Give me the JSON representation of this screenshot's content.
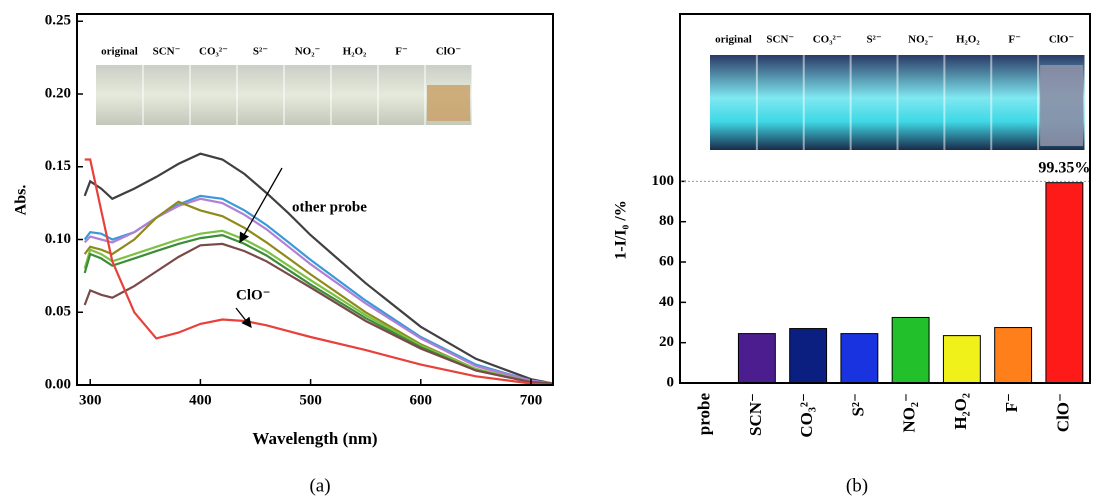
{
  "chart_data": [
    {
      "type": "line",
      "caption": "(a)",
      "x_label": "Wavelength (nm)",
      "y_label": "Abs.",
      "inset_labels": [
        "original",
        "SCN⁻",
        "CO₃²⁻",
        "S²⁻",
        "NO₂⁻",
        "H₂O₂",
        "F⁻",
        "ClO⁻"
      ],
      "annotations": [
        "other probe",
        "ClO⁻"
      ],
      "x": [
        295,
        300,
        310,
        320,
        340,
        360,
        380,
        400,
        420,
        440,
        460,
        480,
        500,
        550,
        600,
        650,
        700,
        720
      ],
      "series": [
        {
          "color": "#404040",
          "values": [
            0.13,
            0.14,
            0.135,
            0.128,
            0.135,
            0.143,
            0.152,
            0.159,
            0.155,
            0.145,
            0.132,
            0.118,
            0.103,
            0.07,
            0.04,
            0.018,
            0.004,
            0.001
          ]
        },
        {
          "color": "#3a9ad9",
          "values": [
            0.1,
            0.105,
            0.104,
            0.1,
            0.105,
            0.115,
            0.124,
            0.13,
            0.128,
            0.12,
            0.11,
            0.098,
            0.086,
            0.058,
            0.033,
            0.014,
            0.003,
            0.001
          ]
        },
        {
          "color": "#b27fd6",
          "values": [
            0.098,
            0.102,
            0.1,
            0.098,
            0.105,
            0.115,
            0.123,
            0.128,
            0.125,
            0.117,
            0.107,
            0.095,
            0.083,
            0.056,
            0.032,
            0.013,
            0.003,
            0.001
          ]
        },
        {
          "color": "#8f8a1c",
          "values": [
            0.09,
            0.095,
            0.093,
            0.09,
            0.1,
            0.115,
            0.126,
            0.12,
            0.116,
            0.108,
            0.098,
            0.087,
            0.076,
            0.05,
            0.028,
            0.011,
            0.002,
            0.001
          ]
        },
        {
          "color": "#7cc242",
          "values": [
            0.08,
            0.093,
            0.09,
            0.085,
            0.09,
            0.095,
            0.1,
            0.104,
            0.106,
            0.1,
            0.092,
            0.082,
            0.072,
            0.048,
            0.027,
            0.011,
            0.002,
            0.001
          ]
        },
        {
          "color": "#3d8c3a",
          "values": [
            0.077,
            0.09,
            0.087,
            0.082,
            0.087,
            0.092,
            0.097,
            0.101,
            0.103,
            0.097,
            0.089,
            0.079,
            0.069,
            0.046,
            0.026,
            0.01,
            0.002,
            0.001
          ]
        },
        {
          "color": "#7a4a4a",
          "values": [
            0.055,
            0.065,
            0.062,
            0.06,
            0.068,
            0.078,
            0.088,
            0.096,
            0.097,
            0.092,
            0.085,
            0.076,
            0.067,
            0.044,
            0.025,
            0.01,
            0.002,
            0.001
          ]
        },
        {
          "color": "#e8403a",
          "values": [
            0.155,
            0.155,
            0.12,
            0.085,
            0.05,
            0.032,
            0.036,
            0.042,
            0.045,
            0.044,
            0.041,
            0.037,
            0.033,
            0.024,
            0.014,
            0.006,
            0.001,
            0
          ]
        }
      ],
      "xlim": [
        288,
        720
      ],
      "xticks": [
        300,
        400,
        500,
        600,
        700
      ],
      "ylim": [
        0,
        0.255
      ],
      "yticks": [
        {
          "value": 0,
          "label": "0.00"
        },
        0.05,
        {
          "value": 0.1,
          "label": "0.10"
        },
        0.15,
        {
          "value": 0.2,
          "label": "0.20"
        },
        0.25
      ]
    },
    {
      "type": "bar",
      "caption": "(b)",
      "y_label": "1-I/I₀ /%",
      "inset_labels": [
        "original",
        "SCN⁻",
        "CO₃²⁻",
        "S²⁻",
        "NO₂⁻",
        "H₂O₂",
        "F⁻",
        "ClO⁻"
      ],
      "categories": [
        "probe",
        "SCN⁻",
        "CO₃²⁻",
        "S²⁻",
        "NO₂⁻",
        "H₂O₂",
        "F⁻",
        "ClO⁻"
      ],
      "values": [
        0,
        24.5,
        27,
        24.5,
        32.5,
        23.5,
        27.5,
        99.35
      ],
      "value_labels": [
        null,
        null,
        null,
        null,
        null,
        null,
        null,
        "99.35%"
      ],
      "colors": [
        "#ffffff",
        "#4b1d8f",
        "#0b1f80",
        "#1a33e0",
        "#22c02a",
        "#f0f01a",
        "#ff7f1a",
        "#ff1a1a"
      ],
      "hline": 100,
      "ylim": [
        0,
        183
      ],
      "yticks": [
        0,
        20,
        40,
        60,
        80,
        100
      ]
    }
  ]
}
